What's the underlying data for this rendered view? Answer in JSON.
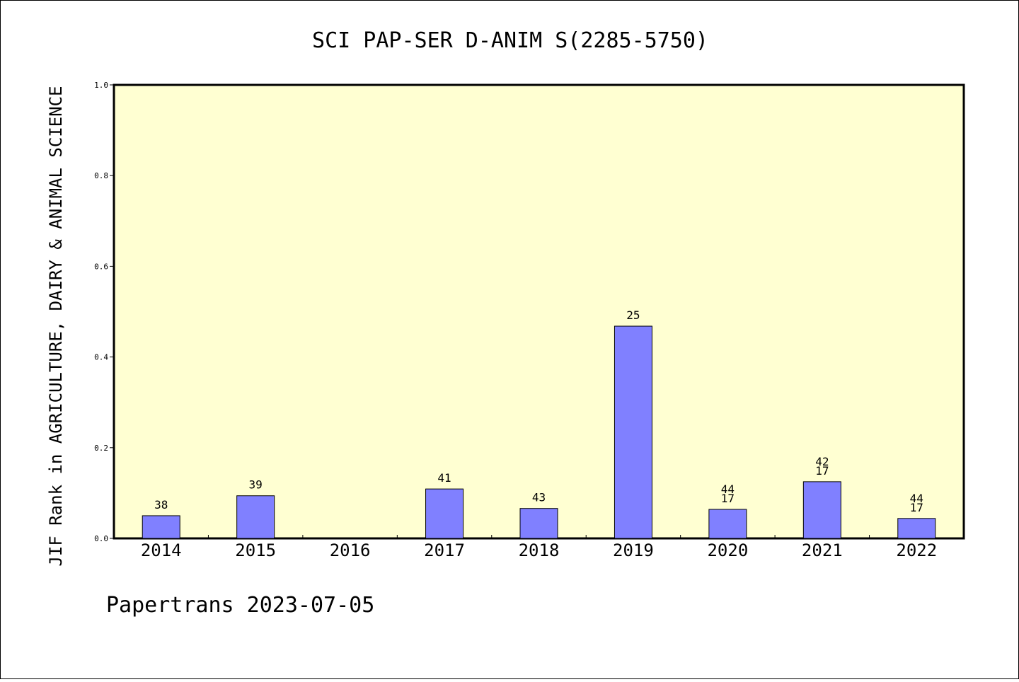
{
  "chart_data": {
    "type": "bar",
    "title": "SCI PAP-SER D-ANIM S(2285-5750)",
    "xlabel": "",
    "ylabel": "JIF Rank in AGRICULTURE, DAIRY & ANIMAL SCIENCE",
    "ylim": [
      0,
      1.0
    ],
    "yticks": [
      "0.0",
      "0.2",
      "0.4",
      "0.6",
      "0.8",
      "1.0"
    ],
    "categories": [
      "2014",
      "2015",
      "2016",
      "2017",
      "2018",
      "2019",
      "2020",
      "2021",
      "2022"
    ],
    "values": [
      0.05,
      0.094,
      null,
      0.109,
      0.066,
      0.468,
      0.064,
      0.125,
      0.044
    ],
    "labels": [
      [
        "38"
      ],
      [
        "39"
      ],
      [],
      [
        "41"
      ],
      [
        "43"
      ],
      [
        "25"
      ],
      [
        "44",
        "17"
      ],
      [
        "42",
        "17"
      ],
      [
        "44",
        "17"
      ]
    ],
    "grid": false,
    "colors": {
      "plot_bg": "#ffffd2",
      "bar": "#8080ff",
      "bar_stroke": "#000000"
    }
  },
  "footer": "Papertrans 2023-07-05"
}
